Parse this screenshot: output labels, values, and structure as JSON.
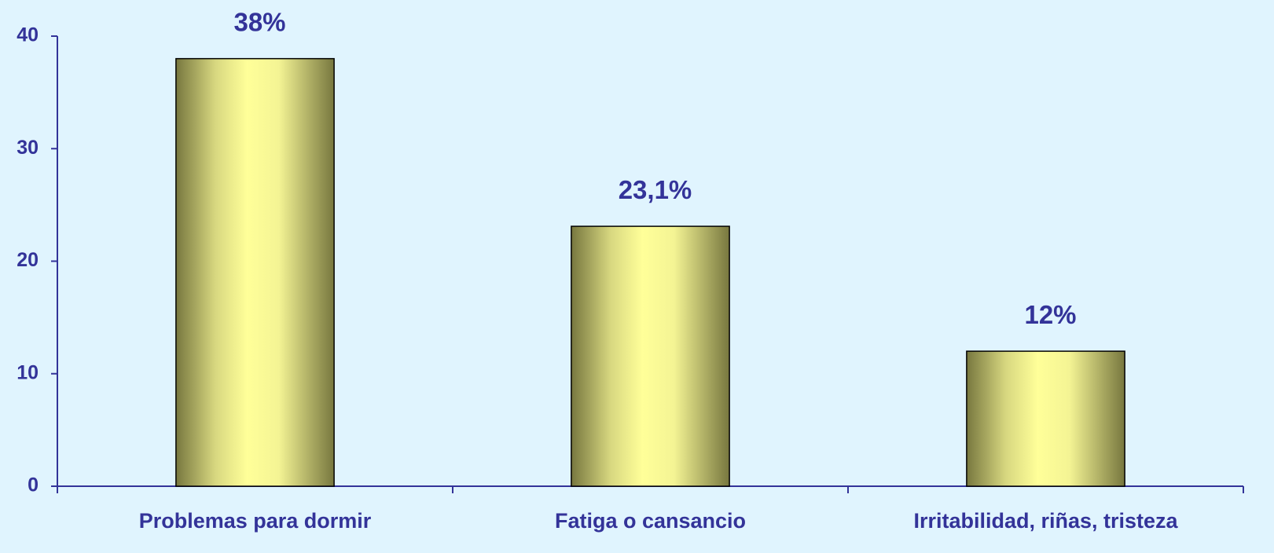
{
  "chart_data": {
    "type": "bar",
    "categories": [
      "Problemas para dormir",
      "Fatiga o cansancio",
      "Irritabilidad, riñas, tristeza"
    ],
    "values": [
      38,
      23.1,
      12
    ],
    "value_labels": [
      "38%",
      "23,1%",
      "12%"
    ],
    "color": "#ffff99",
    "ylim": [
      0,
      40
    ],
    "yticks": [
      0,
      10,
      20,
      30,
      40
    ],
    "grid": false
  }
}
